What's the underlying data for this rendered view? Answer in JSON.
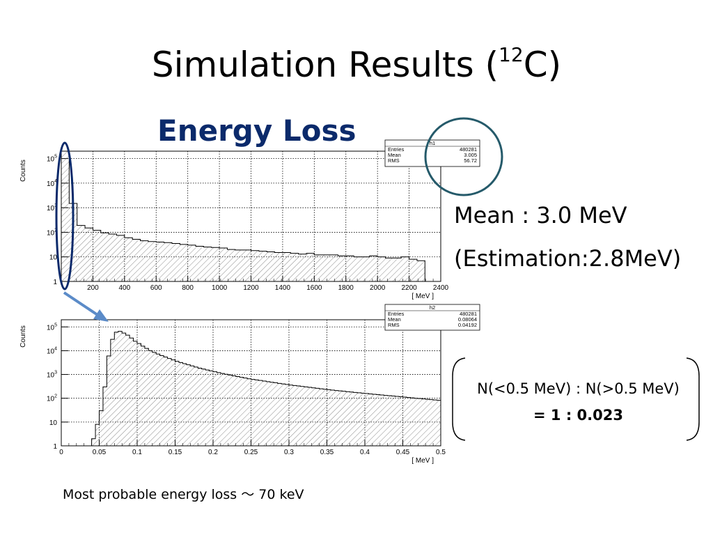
{
  "slide": {
    "title_main": "Simulation Results (",
    "title_sup": "12",
    "title_end": "C)",
    "subtitle": "Energy Loss",
    "mean_text": "Mean : 3.0 MeV",
    "estimation_text": "(Estimation:2.8MeV)",
    "ratio_line1": "N(<0.5 MeV) : N(>0.5 MeV)",
    "ratio_line2": "= 1 : 0.023",
    "note": "Most probable energy loss ～ 70 keV"
  },
  "chart_data": [
    {
      "type": "bar",
      "ylabel": "Counts",
      "xlabel": "[ MeV ]",
      "xlim": [
        0,
        2400
      ],
      "ylim": [
        1,
        200000
      ],
      "yscale": "log",
      "grid": true,
      "xticks": [
        "200",
        "400",
        "600",
        "800",
        "1000",
        "1200",
        "1400",
        "1600",
        "1800",
        "2000",
        "2200",
        "2400"
      ],
      "yticks": [
        {
          "base": "10",
          "exp": "5"
        },
        {
          "base": "10",
          "exp": "4"
        },
        {
          "base": "10",
          "exp": "3"
        },
        {
          "base": "10",
          "exp": "2"
        },
        {
          "base": "10",
          "exp": ""
        },
        {
          "base": "1",
          "exp": ""
        }
      ],
      "stats": {
        "name": "h1",
        "rows": [
          [
            "Entries",
            "480281"
          ],
          [
            "Mean",
            "3.005"
          ],
          [
            "RMS",
            "56.72"
          ]
        ]
      },
      "bin_width": 50,
      "values": [
        200000,
        1500,
        190,
        150,
        120,
        95,
        85,
        75,
        60,
        52,
        45,
        42,
        40,
        38,
        35,
        32,
        30,
        27,
        25,
        24,
        23,
        20,
        19,
        19,
        18,
        17,
        16,
        15,
        15,
        14,
        13,
        14,
        12,
        12,
        12,
        11,
        11,
        10,
        10,
        11,
        10,
        9,
        9,
        10,
        8,
        7
      ]
    },
    {
      "type": "bar",
      "ylabel": "Counts",
      "xlabel": "[ MeV ]",
      "xlim": [
        0,
        0.5
      ],
      "ylim": [
        1,
        200000
      ],
      "yscale": "log",
      "grid": true,
      "xticks": [
        "0",
        "0.05",
        "0.1",
        "0.15",
        "0.2",
        "0.25",
        "0.3",
        "0.35",
        "0.4",
        "0.45",
        "0.5"
      ],
      "yticks": [
        {
          "base": "10",
          "exp": "5"
        },
        {
          "base": "10",
          "exp": "4"
        },
        {
          "base": "10",
          "exp": "3"
        },
        {
          "base": "10",
          "exp": "2"
        },
        {
          "base": "10",
          "exp": ""
        },
        {
          "base": "1",
          "exp": ""
        }
      ],
      "stats": {
        "name": "h2",
        "rows": [
          [
            "Entries",
            "480281"
          ],
          [
            "Mean",
            "0.08064"
          ],
          [
            "RMS",
            "0.04192"
          ]
        ]
      },
      "bin_width": 0.005,
      "values": [
        1,
        1,
        1,
        1,
        1,
        1,
        1,
        1,
        2,
        8,
        30,
        300,
        6000,
        30000,
        60000,
        65000,
        55000,
        45000,
        34000,
        25000,
        20000,
        15500,
        12500,
        10000,
        8500,
        7200,
        6200,
        5400,
        4700,
        4100,
        3600,
        3200,
        2850,
        2550,
        2300,
        2050,
        1850,
        1700,
        1550,
        1420,
        1300,
        1200,
        1100,
        1020,
        950,
        880,
        820,
        760,
        710,
        660,
        620,
        590,
        560,
        530,
        500,
        470,
        450,
        420,
        400,
        380,
        360,
        345,
        330,
        315,
        300,
        288,
        275,
        262,
        250,
        240,
        230,
        220,
        212,
        205,
        198,
        190,
        183,
        176,
        170,
        164,
        158,
        152,
        147,
        142,
        137,
        132,
        128,
        124,
        120,
        116,
        112,
        108,
        104,
        100,
        97,
        94,
        91,
        88,
        85,
        82
      ]
    }
  ]
}
